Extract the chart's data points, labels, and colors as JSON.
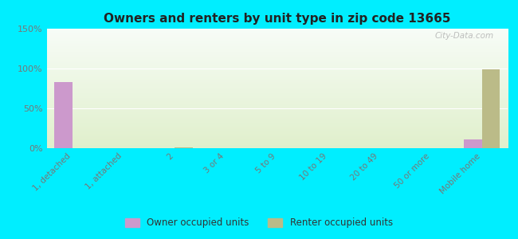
{
  "title": "Owners and renters by unit type in zip code 13665",
  "categories": [
    "1, detached",
    "1, attached",
    "2",
    "3 or 4",
    "5 to 9",
    "10 to 19",
    "20 to 49",
    "50 or more",
    "Mobile home"
  ],
  "owner_values": [
    83,
    0,
    0,
    0,
    0,
    0,
    0,
    0,
    11
  ],
  "renter_values": [
    0,
    0,
    1,
    0,
    0,
    0,
    0,
    0,
    99
  ],
  "owner_color": "#cc99cc",
  "renter_color": "#bbbb88",
  "background_color": "#00eeff",
  "ylim": [
    0,
    150
  ],
  "yticks": [
    0,
    50,
    100,
    150
  ],
  "ytick_labels": [
    "0%",
    "50%",
    "100%",
    "150%"
  ],
  "bar_width": 0.35,
  "legend_owner": "Owner occupied units",
  "legend_renter": "Renter occupied units",
  "watermark": "City-Data.com"
}
